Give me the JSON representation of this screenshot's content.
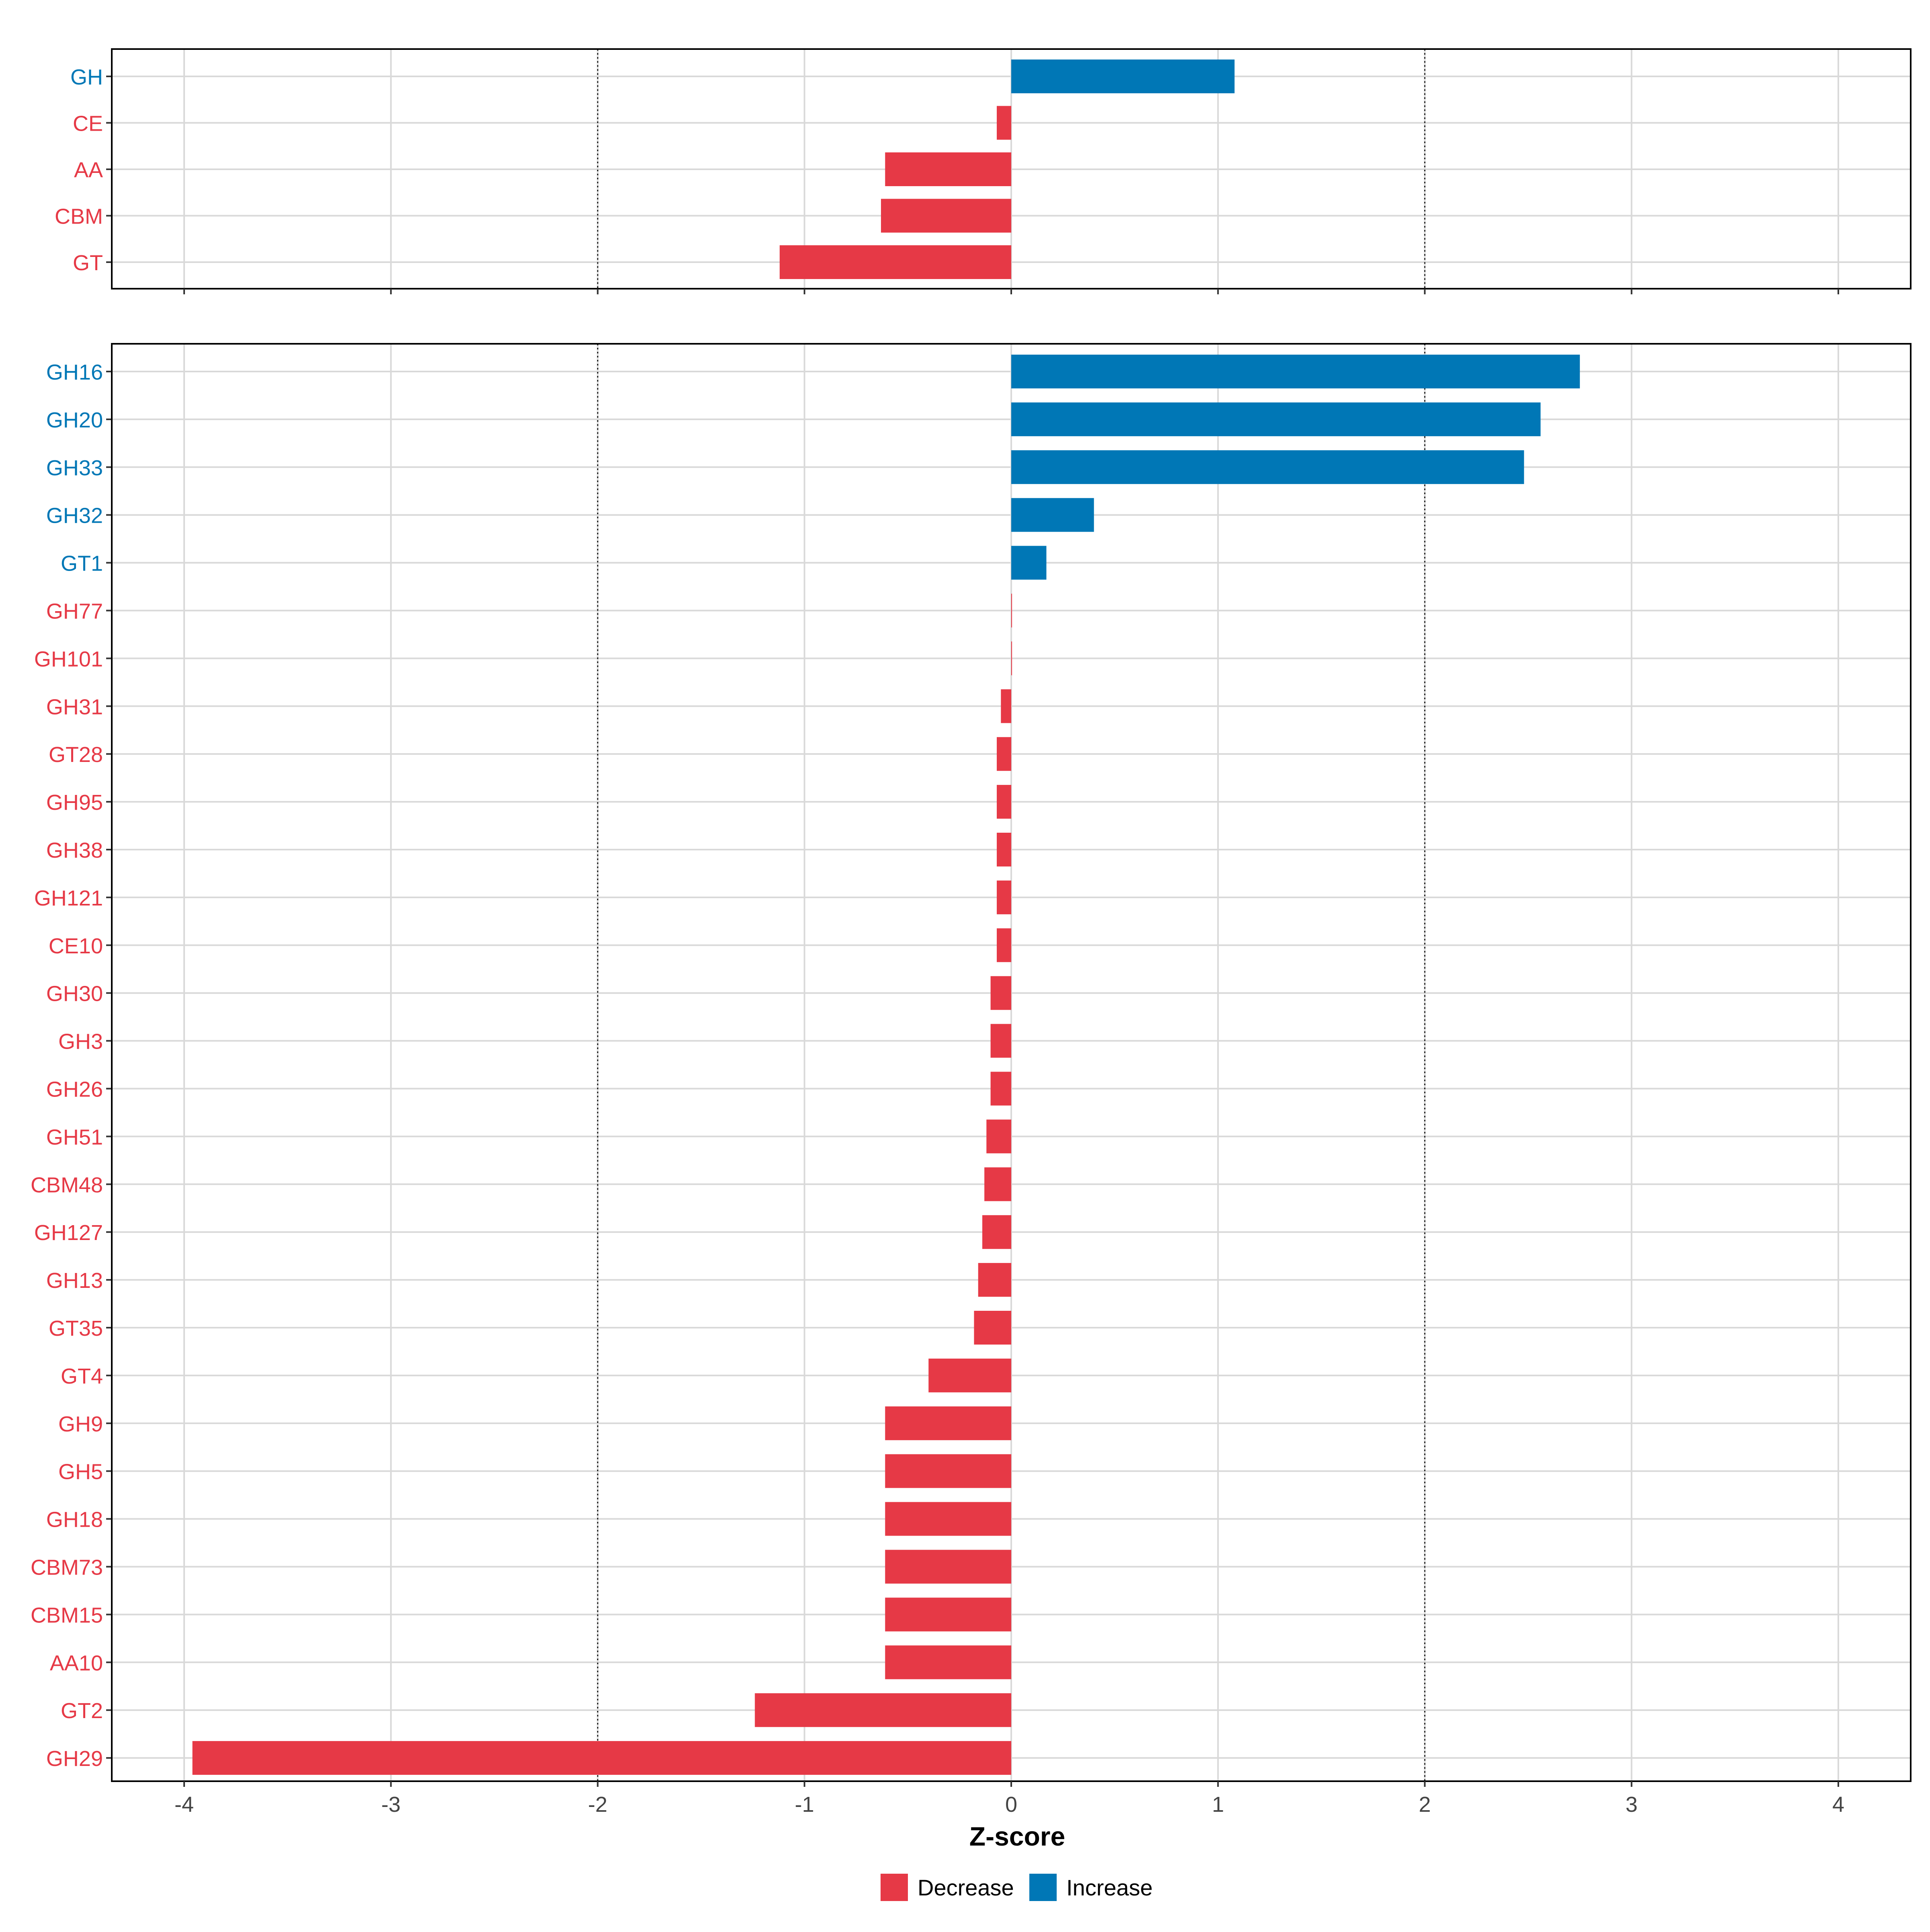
{
  "chart_data": {
    "type": "bar",
    "orientation": "horizontal",
    "xlabel": "Z-score",
    "xlim": [
      -4.35,
      4.35
    ],
    "x_ticks": [
      -4,
      -3,
      -2,
      -1,
      0,
      1,
      2,
      3,
      4
    ],
    "reference_lines": [
      -2,
      2
    ],
    "grid": true,
    "colors": {
      "Decrease": "#E63946",
      "Increase": "#0077B6"
    },
    "legend": {
      "position": "bottom",
      "entries": [
        "Decrease",
        "Increase"
      ]
    },
    "panels": [
      {
        "name": "classes",
        "categories": [
          "GH",
          "CE",
          "AA",
          "CBM",
          "GT"
        ],
        "values": [
          1.08,
          -0.07,
          -0.61,
          -0.63,
          -1.12
        ]
      },
      {
        "name": "families",
        "categories": [
          "GH16",
          "GH20",
          "GH33",
          "GH32",
          "GT1",
          "GH77",
          "GH101",
          "GH31",
          "GT28",
          "GH95",
          "GH38",
          "GH121",
          "CE10",
          "GH30",
          "GH3",
          "GH26",
          "GH51",
          "CBM48",
          "GH127",
          "GH13",
          "GT35",
          "GT4",
          "GH9",
          "GH5",
          "GH18",
          "CBM73",
          "CBM15",
          "AA10",
          "GT2",
          "GH29"
        ],
        "values": [
          2.75,
          2.56,
          2.48,
          0.4,
          0.17,
          0.0,
          0.0,
          -0.05,
          -0.07,
          -0.07,
          -0.07,
          -0.07,
          -0.07,
          -0.1,
          -0.1,
          -0.1,
          -0.12,
          -0.13,
          -0.14,
          -0.16,
          -0.18,
          -0.4,
          -0.61,
          -0.61,
          -0.61,
          -0.61,
          -0.61,
          -0.61,
          -1.24,
          -3.96
        ]
      }
    ]
  }
}
